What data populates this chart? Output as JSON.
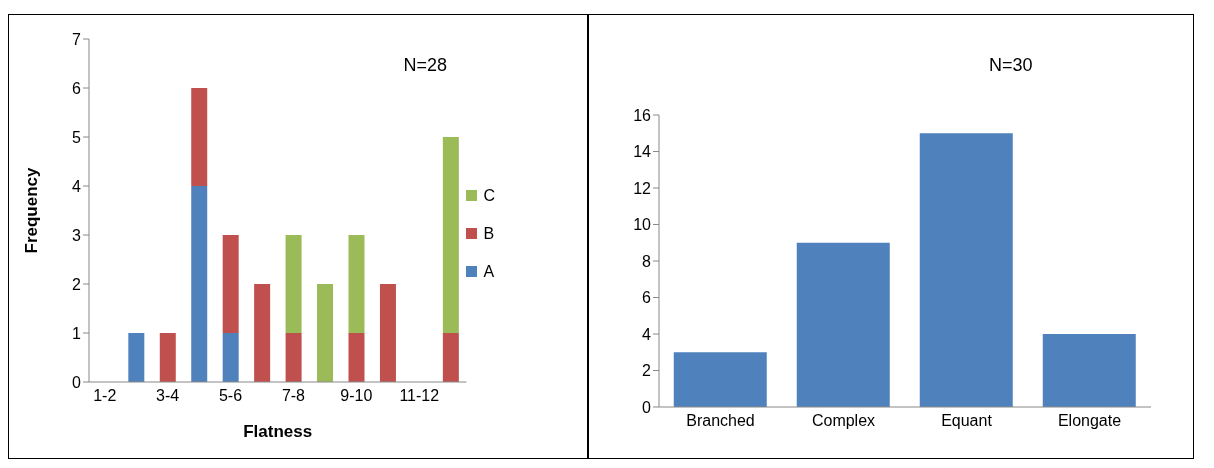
{
  "chart_data": [
    {
      "type": "bar",
      "xlabel": "Flatness",
      "ylabel": "Frequency",
      "annotations": [
        "N=28"
      ],
      "categories": [
        "1-2",
        null,
        "3-4",
        null,
        "5-6",
        null,
        "7-8",
        null,
        "9-10",
        null,
        "11-12",
        null
      ],
      "stacked": true,
      "series": [
        {
          "name": "A",
          "color": "#4f81bd",
          "values": [
            0,
            1,
            0,
            4,
            1,
            0,
            0,
            0,
            0,
            0,
            0,
            0
          ]
        },
        {
          "name": "B",
          "color": "#c0504d",
          "values": [
            0,
            0,
            1,
            2,
            2,
            2,
            1,
            0,
            1,
            2,
            0,
            1
          ]
        },
        {
          "name": "C",
          "color": "#9bbb59",
          "values": [
            0,
            0,
            0,
            0,
            0,
            0,
            2,
            2,
            2,
            0,
            0,
            4
          ]
        }
      ],
      "ylim": [
        0,
        7
      ],
      "yticks": [
        0,
        1,
        2,
        3,
        4,
        5,
        6,
        7
      ],
      "grid": false,
      "legend": "right"
    },
    {
      "type": "bar",
      "annotations": [
        "N=30"
      ],
      "categories": [
        "Branched",
        "Complex",
        "Equant",
        "Elongate"
      ],
      "values": [
        3,
        9,
        15,
        4
      ],
      "color": "#4f81bd",
      "ylim": [
        0,
        16
      ],
      "yticks": [
        0,
        2,
        4,
        6,
        8,
        10,
        12,
        14,
        16
      ],
      "grid": false
    }
  ]
}
